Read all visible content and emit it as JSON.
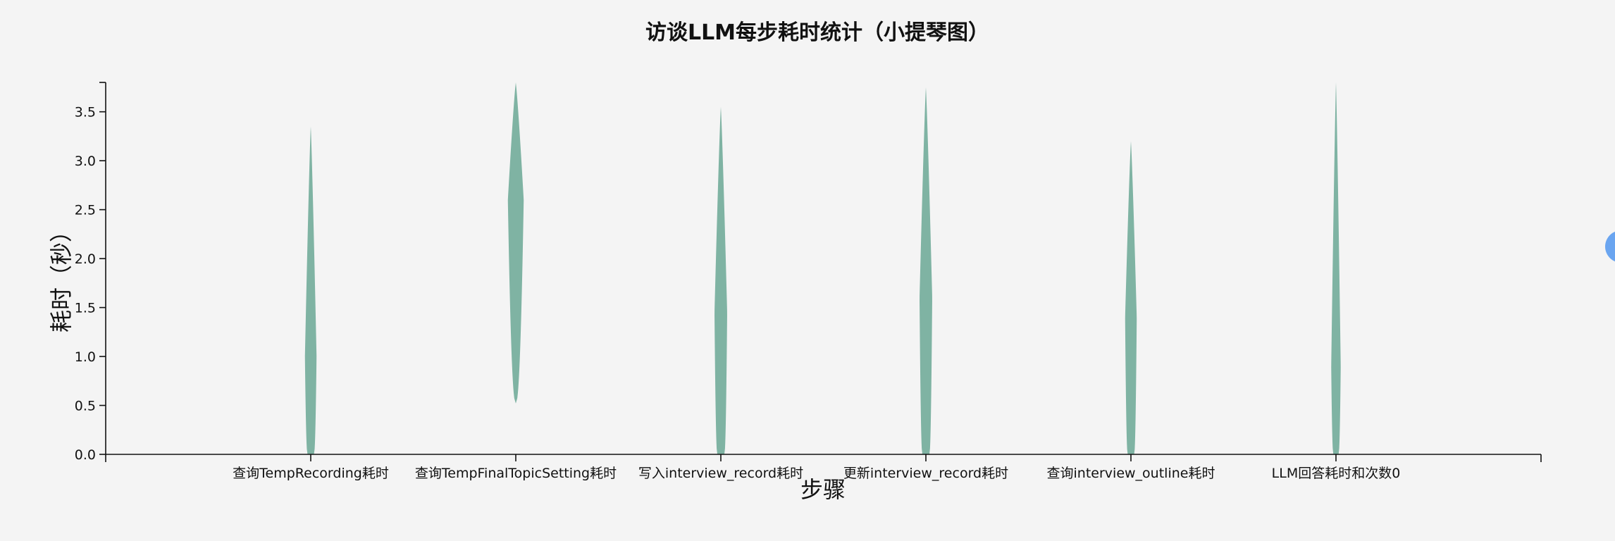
{
  "chart_data": {
    "type": "violin",
    "title": "访谈LLM每步耗时统计（小提琴图）",
    "xlabel": "步骤",
    "ylabel": "耗时（秒）",
    "ylim": [
      0,
      3.8
    ],
    "yticks": [
      0.0,
      0.5,
      1.0,
      1.5,
      2.0,
      2.5,
      3.0,
      3.5
    ],
    "fill_color": "#7fb3a3",
    "categories": [
      "查询TempRecording耗时",
      "查询TempFinalTopicSetting耗时",
      "写入interview_record耗时",
      "更新interview_record耗时",
      "查询interview_outline耗时",
      "LLM回答耗时和次数0"
    ],
    "violins": [
      {
        "category": "查询TempRecording耗时",
        "min": 0.0,
        "max": 3.35,
        "peak": 1.0,
        "peak_width": 0.55
      },
      {
        "category": "查询TempFinalTopicSetting耗时",
        "min": 0.52,
        "max": 3.8,
        "peak": 2.6,
        "peak_width": 0.75
      },
      {
        "category": "写入interview_record耗时",
        "min": 0.0,
        "max": 3.55,
        "peak": 1.45,
        "peak_width": 0.6
      },
      {
        "category": "更新interview_record耗时",
        "min": 0.0,
        "max": 3.75,
        "peak": 1.6,
        "peak_width": 0.6
      },
      {
        "category": "查询interview_outline耗时",
        "min": 0.0,
        "max": 3.2,
        "peak": 1.4,
        "peak_width": 0.55
      },
      {
        "category": "LLM回答耗时和次数0",
        "min": 0.0,
        "max": 3.8,
        "peak": 0.9,
        "peak_width": 0.45
      }
    ]
  },
  "side_button": {
    "icon": "expand-icon"
  }
}
